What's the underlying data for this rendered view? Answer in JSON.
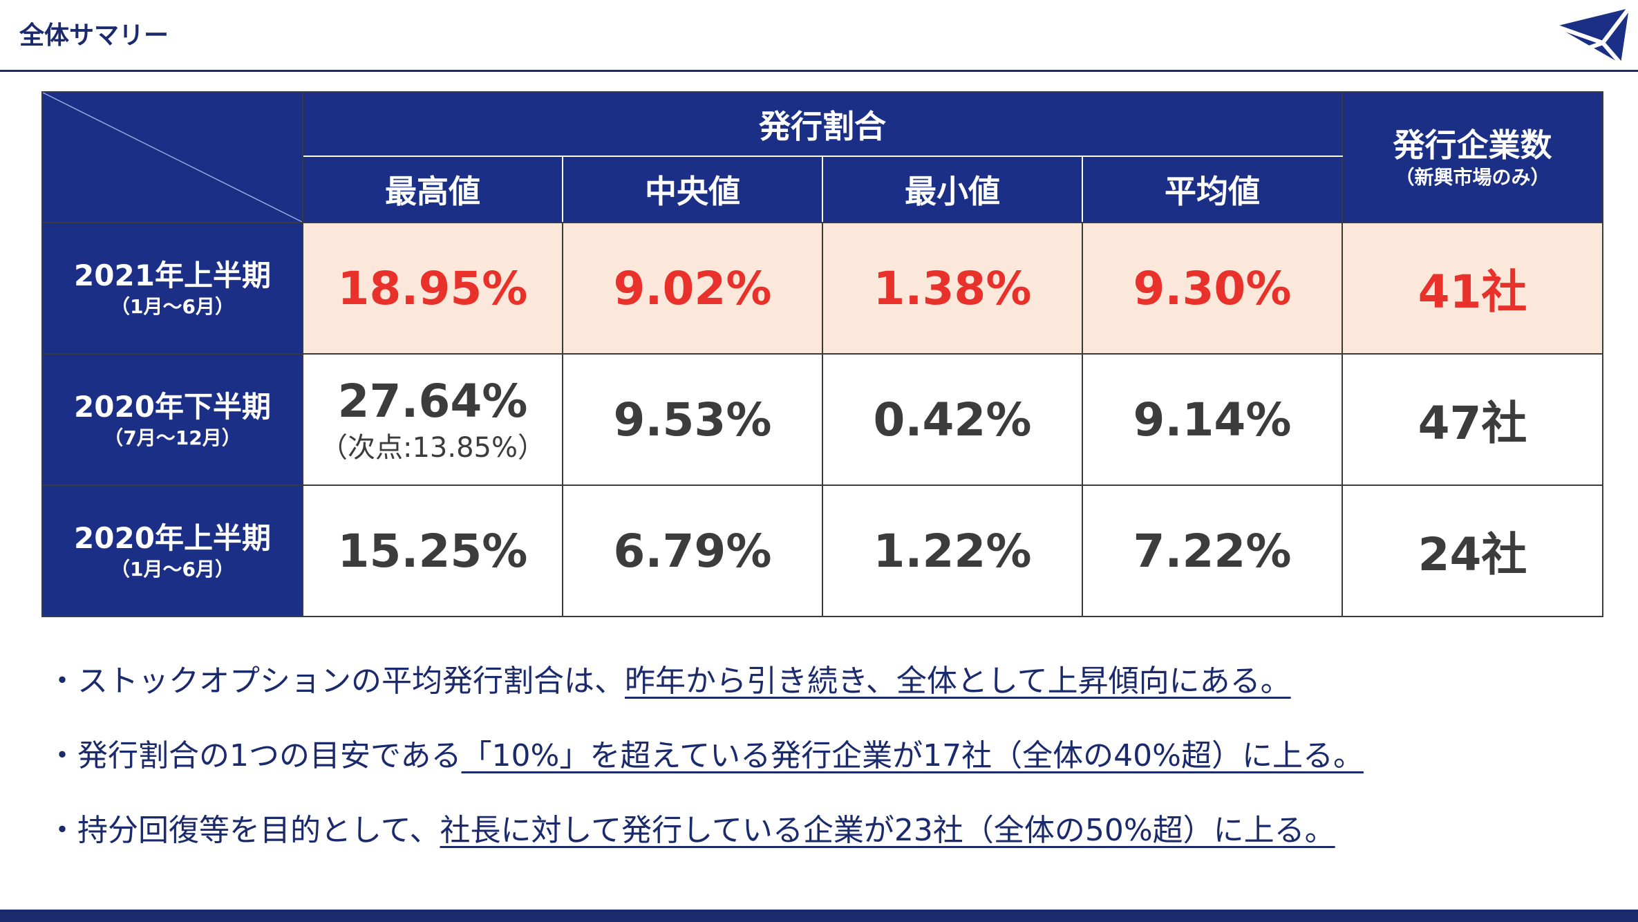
{
  "header": {
    "title": "全体サマリー"
  },
  "table": {
    "group_header": "発行割合",
    "sub_headers": [
      "最高値",
      "中央値",
      "最小値",
      "平均値"
    ],
    "count_header": "発行企業数",
    "count_header_note": "（新興市場のみ）",
    "rows": [
      {
        "period": "2021年上半期",
        "months": "（1月～6月）",
        "max": "18.95%",
        "max_note": "",
        "median": "9.02%",
        "min": "1.38%",
        "avg": "9.30%",
        "count": "41社"
      },
      {
        "period": "2020年下半期",
        "months": "（7月～12月）",
        "max": "27.64%",
        "max_note": "（次点:13.85%）",
        "median": "9.53%",
        "min": "0.42%",
        "avg": "9.14%",
        "count": "47社"
      },
      {
        "period": "2020年上半期",
        "months": "（1月～6月）",
        "max": "15.25%",
        "max_note": "",
        "median": "6.79%",
        "min": "1.22%",
        "avg": "7.22%",
        "count": "24社"
      }
    ]
  },
  "bullets": [
    {
      "prefix": "・ストックオプションの平均発行割合は、",
      "underlined": "昨年から引き続き、全体として上昇傾向にある。"
    },
    {
      "prefix": "・発行割合の1つの目安である",
      "underlined": "「10%」を超えている発行企業が17社（全体の40%超）に上る。"
    },
    {
      "prefix": "・持分回復等を目的として、",
      "underlined": "社長に対して発行している企業が23社（全体の50%超）に上る。"
    }
  ],
  "colors": {
    "navy": "#1a2f85",
    "highlight_text": "#e8312a",
    "highlight_bg": "#fbe8da"
  }
}
